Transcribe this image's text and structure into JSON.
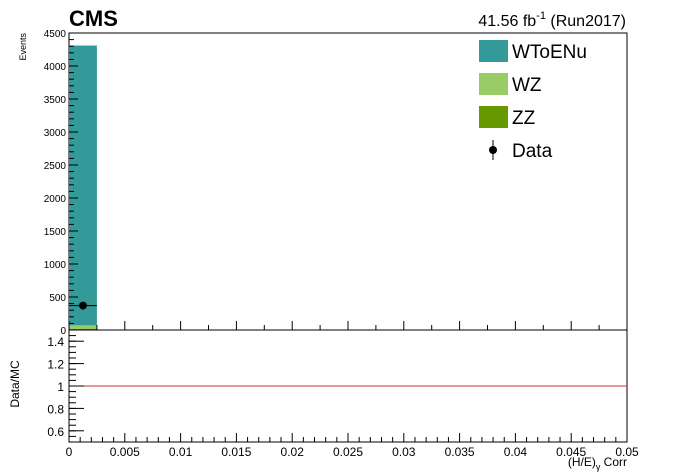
{
  "header": {
    "experiment": "CMS",
    "lumi_value": "41.56 fb",
    "lumi_exponent": "-1",
    "lumi_run": " (Run2017)"
  },
  "chart_data": [
    {
      "type": "bar",
      "panel": "main",
      "stacked": true,
      "ylabel": "Events",
      "xlim": [
        0,
        0.05
      ],
      "ylim": [
        0,
        4500
      ],
      "yticks": [
        0,
        500,
        1000,
        1500,
        2000,
        2500,
        3000,
        3500,
        4000,
        4500
      ],
      "bin_width": 0.0025,
      "series": [
        {
          "name": "ZZ",
          "color": "#669900",
          "bins": [
            {
              "x": 0.00125,
              "value": 15
            }
          ]
        },
        {
          "name": "WZ",
          "color": "#99cc66",
          "bins": [
            {
              "x": 0.00125,
              "value": 55
            }
          ]
        },
        {
          "name": "WToENu",
          "color": "#339999",
          "bins": [
            {
              "x": 0.00125,
              "value": 4240
            }
          ]
        }
      ],
      "data_points": {
        "name": "Data",
        "color": "#000000",
        "points": [
          {
            "x": 0.00125,
            "y": 370,
            "xerr": 0.00125,
            "yerr": 19
          }
        ]
      },
      "legend": {
        "placement": "top-right",
        "entries": [
          {
            "label": "WToENu",
            "style": "box",
            "color": "#339999"
          },
          {
            "label": "WZ",
            "style": "box",
            "color": "#99cc66"
          },
          {
            "label": "ZZ",
            "style": "box",
            "color": "#669900"
          },
          {
            "label": "Data",
            "style": "marker",
            "color": "#000000"
          }
        ]
      }
    },
    {
      "type": "line",
      "panel": "ratio",
      "ylabel": "Data/MC",
      "xlabel": "(H/E)",
      "xlabel_sub": "γ",
      "xlabel_suffix": " Corr",
      "xlim": [
        0,
        0.05
      ],
      "ylim": [
        0.5,
        1.5
      ],
      "yticks": [
        0.6,
        0.8,
        1,
        1.2,
        1.4
      ],
      "xticks": [
        0,
        0.005,
        0.01,
        0.015,
        0.02,
        0.025,
        0.03,
        0.035,
        0.04,
        0.045,
        0.05
      ],
      "reference_line": {
        "y": 1,
        "color": "#cc3333"
      }
    }
  ]
}
